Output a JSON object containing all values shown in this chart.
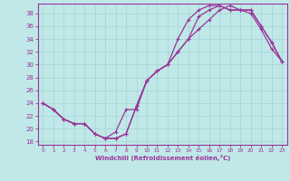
{
  "xlabel": "Windchill (Refroidissement éolien,°C)",
  "bg_color": "#c0e8e8",
  "grid_color": "#a8d8d8",
  "line_color": "#993399",
  "spine_color": "#993399",
  "xlim": [
    -0.5,
    23.5
  ],
  "ylim": [
    17.5,
    39.5
  ],
  "xticks": [
    0,
    1,
    2,
    3,
    4,
    5,
    6,
    7,
    8,
    9,
    10,
    11,
    12,
    13,
    14,
    15,
    16,
    17,
    18,
    19,
    20,
    21,
    22,
    23
  ],
  "yticks": [
    18,
    20,
    22,
    24,
    26,
    28,
    30,
    32,
    34,
    36,
    38
  ],
  "curve1_x": [
    0,
    1,
    2,
    3,
    4,
    5,
    6,
    7,
    8,
    9,
    10,
    11,
    12,
    13,
    14,
    15,
    16,
    17,
    18,
    19,
    20,
    21,
    22,
    23
  ],
  "curve1_y": [
    24.0,
    23.0,
    21.5,
    20.8,
    20.8,
    19.2,
    18.5,
    18.5,
    19.2,
    23.5,
    27.5,
    29.0,
    30.0,
    32.0,
    34.0,
    35.5,
    37.0,
    38.5,
    39.2,
    38.5,
    38.0,
    35.5,
    32.5,
    30.5
  ],
  "curve2_x": [
    0,
    1,
    2,
    3,
    4,
    5,
    6,
    7,
    8,
    9,
    10,
    11,
    12,
    13,
    14,
    15,
    16,
    17,
    18,
    19,
    20,
    21,
    22,
    23
  ],
  "curve2_y": [
    24.0,
    23.0,
    21.5,
    20.8,
    20.8,
    19.2,
    18.5,
    19.5,
    23.0,
    23.0,
    27.5,
    29.0,
    30.0,
    32.0,
    34.0,
    37.5,
    38.5,
    39.2,
    38.5,
    38.5,
    38.5,
    36.0,
    33.5,
    30.5
  ],
  "curve3_x": [
    0,
    1,
    2,
    3,
    4,
    5,
    6,
    7,
    8,
    9,
    10,
    11,
    12,
    13,
    14,
    15,
    16,
    17,
    18,
    19,
    20,
    21,
    22,
    23
  ],
  "curve3_y": [
    24.0,
    23.0,
    21.5,
    20.8,
    20.8,
    19.2,
    18.5,
    18.5,
    19.2,
    23.5,
    27.5,
    29.0,
    30.0,
    34.0,
    37.0,
    38.5,
    39.2,
    39.2,
    38.5,
    38.5,
    38.5,
    36.0,
    33.5,
    30.5
  ]
}
